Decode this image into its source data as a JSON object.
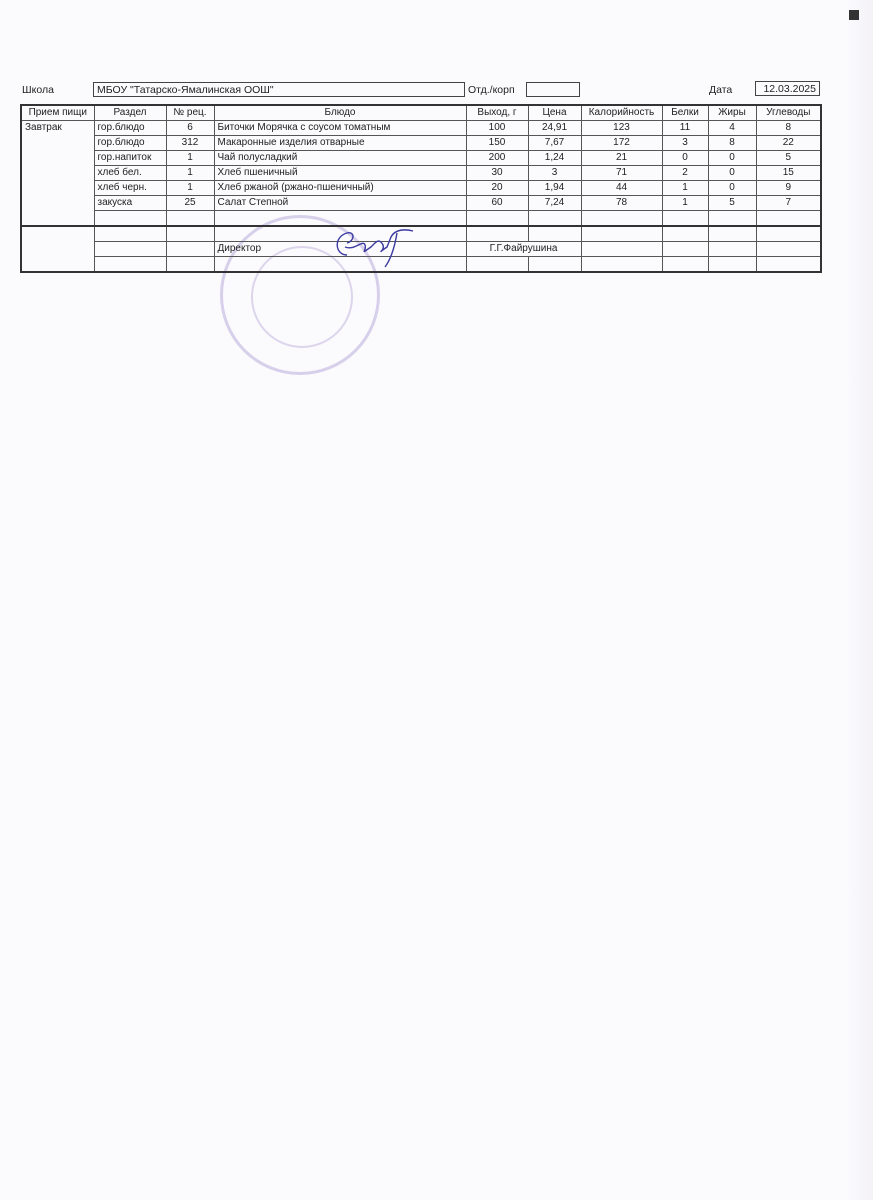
{
  "header": {
    "school_label": "Школа",
    "school_value": "МБОУ \"Татарско-Ямалинская ООШ\"",
    "dept_label": "Отд./корп",
    "dept_value": "",
    "date_label": "Дата",
    "date_value": "12.03.2025"
  },
  "table": {
    "columns": [
      "Прием пищи",
      "Раздел",
      "№ рец.",
      "Блюдо",
      "Выход, г",
      "Цена",
      "Калорийность",
      "Белки",
      "Жиры",
      "Углеводы"
    ],
    "meal": "Завтрак",
    "rows": [
      [
        "гор.блюдо",
        "6",
        "Биточки Морячка с соусом томатным",
        "100",
        "24,91",
        "123",
        "11",
        "4",
        "8"
      ],
      [
        "гор.блюдо",
        "312",
        "Макаронные изделия отварные",
        "150",
        "7,67",
        "172",
        "3",
        "8",
        "22"
      ],
      [
        "гор.напиток",
        "1",
        "Чай полусладкий",
        "200",
        "1,24",
        "21",
        "0",
        "0",
        "5"
      ],
      [
        "хлеб бел.",
        "1",
        "Хлеб пшеничный",
        "30",
        "3",
        "71",
        "2",
        "0",
        "15"
      ],
      [
        "хлеб черн.",
        "1",
        "Хлеб ржаной (ржано-пшеничный)",
        "20",
        "1,94",
        "44",
        "1",
        "0",
        "9"
      ],
      [
        "закуска",
        "25",
        "Салат Степной",
        "60",
        "7,24",
        "78",
        "1",
        "5",
        "7"
      ]
    ],
    "director_label": "Директор",
    "director_name": "Г.Г.Файрушина"
  },
  "colors": {
    "stamp": "#9682c8",
    "signature": "#3a3aa0"
  }
}
